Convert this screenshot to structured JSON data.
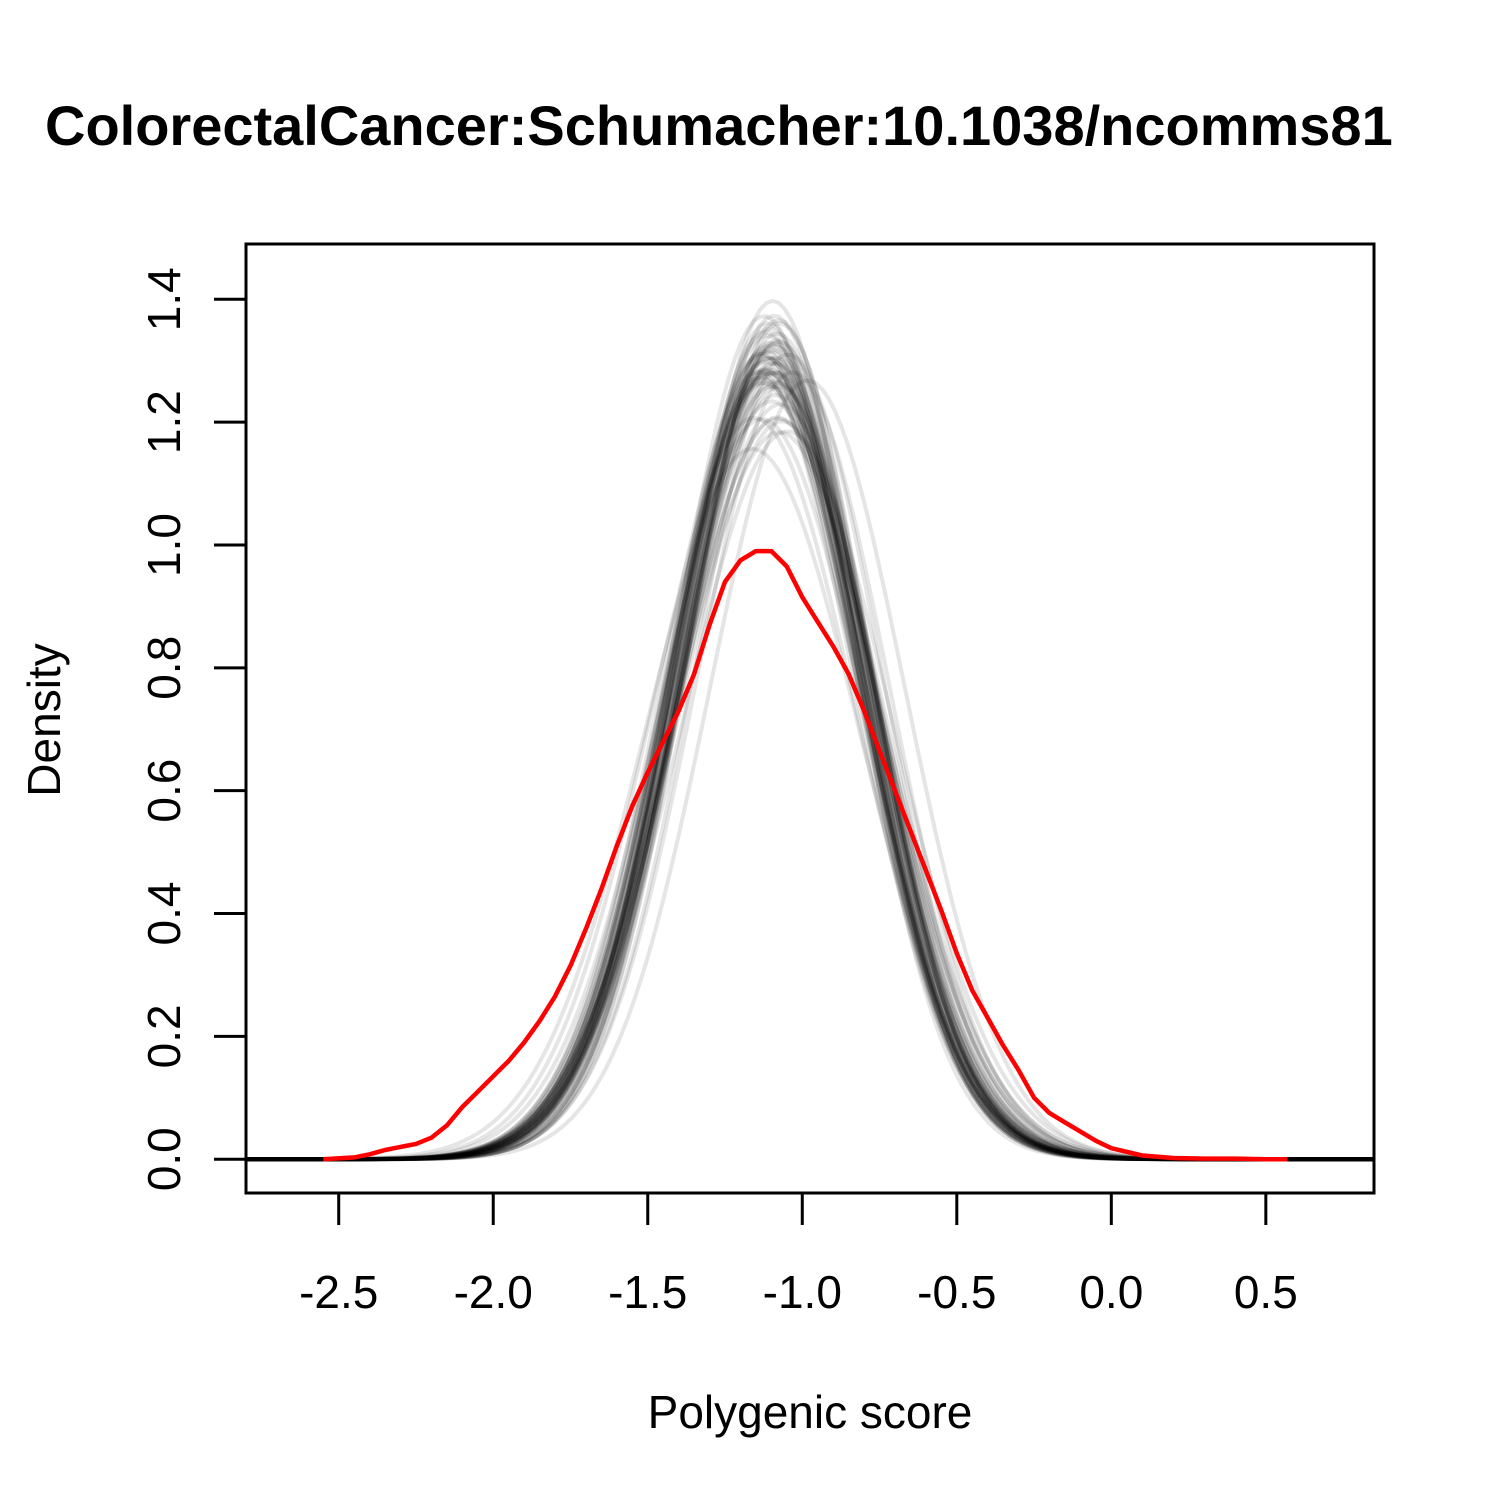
{
  "chart_data": {
    "type": "line",
    "title": "ColorectalCancer:Schumacher:10.1038/ncomms81",
    "xlabel": "Polygenic score",
    "ylabel": "Density",
    "xlim": [
      -2.8,
      0.85
    ],
    "ylim": [
      -0.055,
      1.49
    ],
    "xticks": [
      -2.5,
      -2.0,
      -1.5,
      -1.0,
      -0.5,
      0.0,
      0.5
    ],
    "xtick_labels": [
      "-2.5",
      "-2.0",
      "-1.5",
      "-1.0",
      "-0.5",
      "0.0",
      "0.5"
    ],
    "yticks": [
      0.0,
      0.2,
      0.4,
      0.6,
      0.8,
      1.0,
      1.2,
      1.4
    ],
    "ytick_labels": [
      "0.0",
      "0.2",
      "0.4",
      "0.6",
      "0.8",
      "1.0",
      "1.2",
      "1.4"
    ],
    "grid": false,
    "legend": "none",
    "series": [
      {
        "role": "simulated-densities",
        "color": "#000000",
        "count": 60,
        "curve": "normal",
        "x_range": [
          -2.8,
          0.85
        ],
        "mean": -1.1,
        "mean_spread": 0.03,
        "sd": 0.31,
        "sd_spread": 0.012
      },
      {
        "role": "observed-density",
        "color": "#ff0000",
        "x": [
          -2.55,
          -2.45,
          -2.4,
          -2.35,
          -2.3,
          -2.25,
          -2.2,
          -2.15,
          -2.1,
          -2.05,
          -2.0,
          -1.95,
          -1.9,
          -1.85,
          -1.8,
          -1.75,
          -1.7,
          -1.65,
          -1.6,
          -1.55,
          -1.5,
          -1.45,
          -1.4,
          -1.35,
          -1.3,
          -1.25,
          -1.2,
          -1.15,
          -1.1,
          -1.05,
          -1.0,
          -0.95,
          -0.9,
          -0.85,
          -0.8,
          -0.75,
          -0.7,
          -0.65,
          -0.6,
          -0.55,
          -0.5,
          -0.45,
          -0.4,
          -0.35,
          -0.3,
          -0.25,
          -0.2,
          -0.15,
          -0.1,
          -0.05,
          0.0,
          0.1,
          0.2,
          0.3,
          0.4,
          0.5,
          0.57
        ],
        "y": [
          0.0,
          0.003,
          0.008,
          0.015,
          0.02,
          0.025,
          0.035,
          0.055,
          0.085,
          0.11,
          0.135,
          0.16,
          0.19,
          0.225,
          0.265,
          0.315,
          0.375,
          0.44,
          0.51,
          0.575,
          0.63,
          0.68,
          0.73,
          0.79,
          0.87,
          0.94,
          0.975,
          0.99,
          0.99,
          0.965,
          0.915,
          0.875,
          0.835,
          0.79,
          0.73,
          0.665,
          0.6,
          0.535,
          0.47,
          0.405,
          0.335,
          0.275,
          0.23,
          0.185,
          0.145,
          0.1,
          0.075,
          0.06,
          0.045,
          0.03,
          0.018,
          0.006,
          0.002,
          0.001,
          0.001,
          0.0,
          0.0
        ]
      }
    ]
  }
}
